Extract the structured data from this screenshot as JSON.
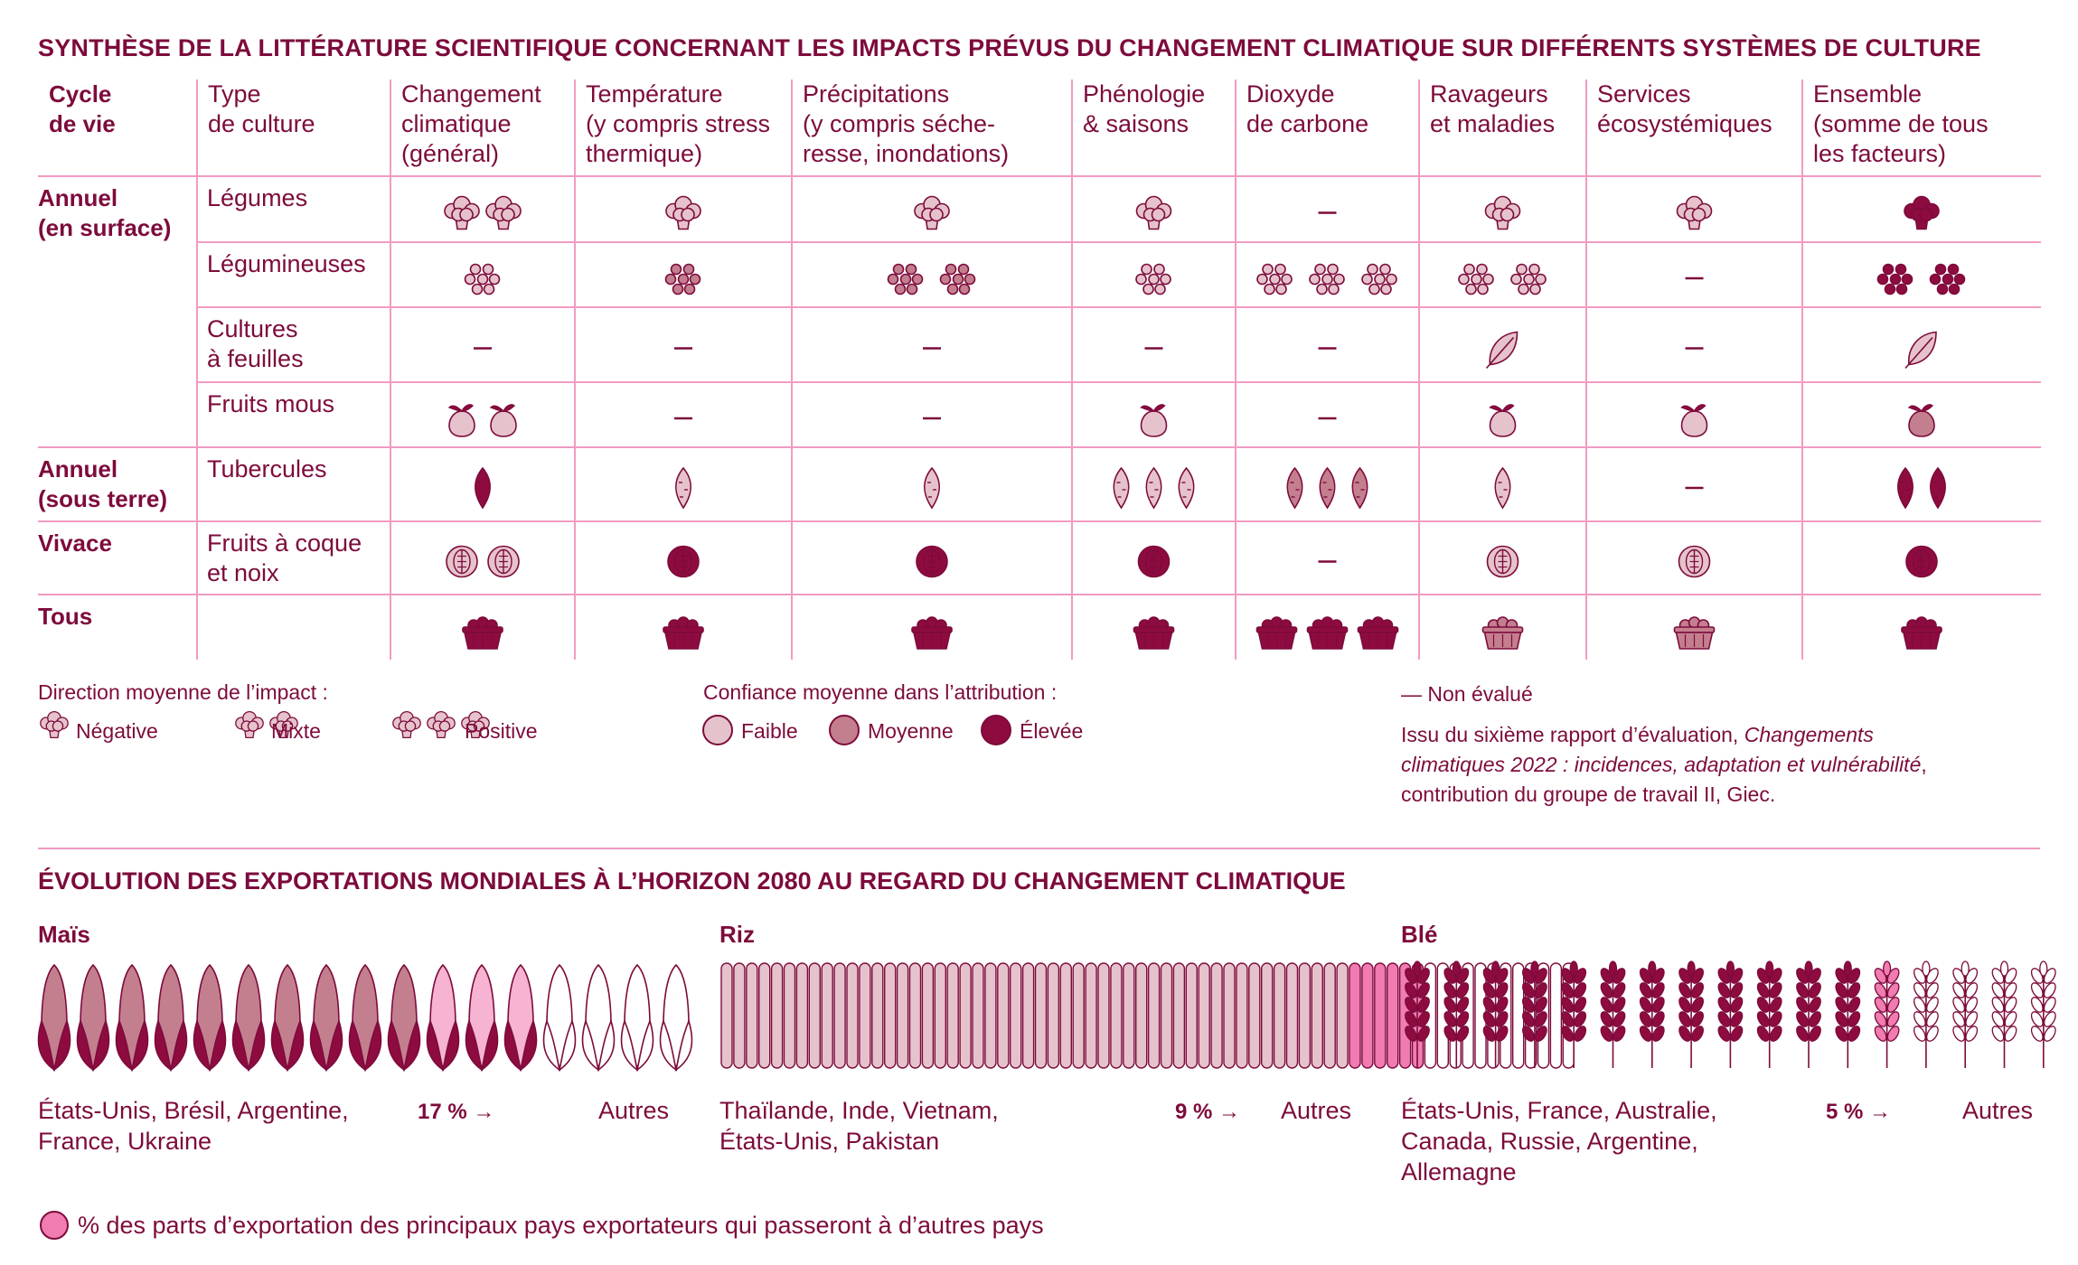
{
  "title": "SYNTHÈSE DE LA LITTÉRATURE SCIENTIFIQUE CONCERNANT LES IMPACTS PRÉVUS DU CHANGEMENT CLIMATIQUE SUR DIFFÉRENTS SYSTÈMES DE CULTURE",
  "columns": [
    "Cycle\nde vie",
    "Type\nde culture",
    "Changement\nclimatique\n(général)",
    "Température\n(y compris stress\nthermique)",
    "Précipitations\n(y compris séche-\nresse, inondations)",
    "Phénologie\n& saisons",
    "Dioxyde\nde carbone",
    "Ravageurs\net maladies",
    "Services\nécosystémiques",
    "Ensemble\n(somme de tous\nles facteurs)"
  ],
  "rows": [
    {
      "cycle": "Annuel\n(en surface)",
      "crop": "Légumes",
      "icon": "broccoli",
      "cells": [
        {
          "n": 2,
          "c": "low"
        },
        {
          "n": 1,
          "c": "low"
        },
        {
          "n": 1,
          "c": "low"
        },
        {
          "n": 1,
          "c": "low"
        },
        null,
        {
          "n": 1,
          "c": "low"
        },
        {
          "n": 1,
          "c": "low"
        },
        {
          "n": 1,
          "c": "high"
        }
      ]
    },
    {
      "cycle": "",
      "crop": "Légumineuses",
      "icon": "beans",
      "cells": [
        {
          "n": 1,
          "c": "low"
        },
        {
          "n": 1,
          "c": "med"
        },
        {
          "n": 2,
          "c": "med"
        },
        {
          "n": 1,
          "c": "low"
        },
        {
          "n": 3,
          "c": "low"
        },
        {
          "n": 2,
          "c": "low"
        },
        null,
        {
          "n": 2,
          "c": "high"
        }
      ]
    },
    {
      "cycle": "",
      "crop": "Cultures\nà feuilles",
      "icon": "leaf",
      "cells": [
        null,
        null,
        null,
        null,
        null,
        {
          "n": 1,
          "c": "low"
        },
        null,
        {
          "n": 1,
          "c": "low"
        }
      ]
    },
    {
      "cycle": "",
      "crop": "Fruits mous",
      "icon": "fruit",
      "cells": [
        {
          "n": 2,
          "c": "low"
        },
        null,
        null,
        {
          "n": 1,
          "c": "low"
        },
        null,
        {
          "n": 1,
          "c": "low"
        },
        {
          "n": 1,
          "c": "low"
        },
        {
          "n": 1,
          "c": "med"
        }
      ]
    },
    {
      "cycle": "Annuel\n(sous terre)",
      "crop": "Tubercules",
      "icon": "tuber",
      "cells": [
        {
          "n": 1,
          "c": "high"
        },
        {
          "n": 1,
          "c": "low"
        },
        {
          "n": 1,
          "c": "low"
        },
        {
          "n": 3,
          "c": "low"
        },
        {
          "n": 3,
          "c": "med"
        },
        {
          "n": 1,
          "c": "low"
        },
        null,
        {
          "n": 2,
          "c": "high"
        }
      ]
    },
    {
      "cycle": "Vivace",
      "crop": "Fruits à coque\net noix",
      "icon": "nut",
      "cells": [
        {
          "n": 2,
          "c": "low"
        },
        {
          "n": 1,
          "c": "high"
        },
        {
          "n": 1,
          "c": "high"
        },
        {
          "n": 1,
          "c": "high"
        },
        null,
        {
          "n": 1,
          "c": "low"
        },
        {
          "n": 1,
          "c": "low"
        },
        {
          "n": 1,
          "c": "high"
        }
      ]
    },
    {
      "cycle": "Tous",
      "crop": "",
      "icon": "basket",
      "cells": [
        {
          "n": 1,
          "c": "high"
        },
        {
          "n": 1,
          "c": "high"
        },
        {
          "n": 1,
          "c": "high"
        },
        {
          "n": 1,
          "c": "high"
        },
        {
          "n": 3,
          "c": "high"
        },
        {
          "n": 1,
          "c": "med"
        },
        {
          "n": 1,
          "c": "med"
        },
        {
          "n": 1,
          "c": "high"
        }
      ]
    }
  ],
  "legend": {
    "direction_title": "Direction moyenne de l’impact :",
    "negative": "Négative",
    "mixed": "Mixte",
    "positive": "Positive",
    "confidence_title": "Confiance moyenne dans l’attribution :",
    "low": "Faible",
    "medium": "Moyenne",
    "high": "Élevée",
    "not_evaluated": "Non évalué",
    "source_1": "Issu du sixième rapport d’évaluation, ",
    "source_italic": "Changements\nclimatiques 2022 : incidences, adaptation et vulnérabilité",
    "source_2": ",\ncontribution du groupe de travail II, Giec."
  },
  "colors": {
    "low": "#e6c3cc",
    "med": "#c47f8f",
    "high": "#8e0b40",
    "accent": "#f07cb1",
    "line": "#f29bc3",
    "text": "#7d0b3c"
  },
  "exports": {
    "title": "ÉVOLUTION DES EXPORTATIONS MONDIALES À L’HORIZON 2080 AU REGARD DU CHANGEMENT CLIMATIQUE",
    "footnote": "% des parts d’exportation des principaux pays exportateurs qui passeront à d’autres pays",
    "crops": [
      {
        "name": "Maïs",
        "countries": "États-Unis, Brésil, Argentine,\nFrance, Ukraine",
        "shift_label": "17 % →",
        "others": "Autres",
        "shift_pct": 17,
        "icon_count": 17,
        "main_icons": 10,
        "shift_icons": 3,
        "other_icons": 4
      },
      {
        "name": "Riz",
        "countries": "Thaïlande, Inde, Vietnam,\nÉtats-Unis, Pakistan",
        "shift_label": "9 % →",
        "others": "Autres",
        "shift_pct": 9,
        "icon_count": 68,
        "main_icons": 50,
        "shift_icons": 6,
        "other_icons": 12
      },
      {
        "name": "Blé",
        "countries": "États-Unis, France, Australie,\nCanada, Russie, Argentine,\nAllemagne",
        "shift_label": "5 % →",
        "others": "Autres",
        "shift_pct": 5,
        "icon_count": 17,
        "main_icons": 12,
        "shift_icons": 1,
        "other_icons": 4
      }
    ]
  }
}
